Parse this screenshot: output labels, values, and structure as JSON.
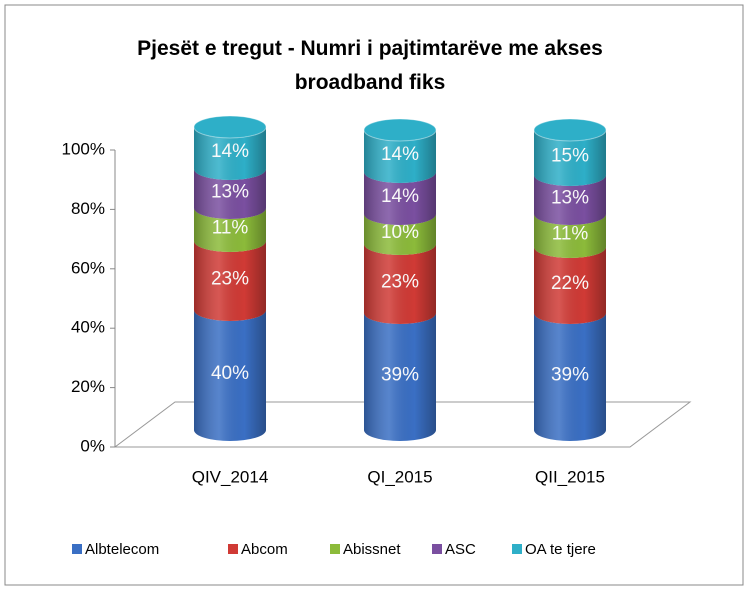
{
  "chart_data": {
    "type": "bar",
    "stacked": true,
    "title": "Pjesët e tregut - Numri i pajtimtarëve me akses broadband fiks",
    "categories": [
      "QIV_2014",
      "QI_2015",
      "QII_2015"
    ],
    "series": [
      {
        "name": "Albtelecom",
        "color": "#3a6fc4",
        "values": [
          40,
          39,
          39
        ],
        "value_labels": [
          "40%",
          "39%",
          "39%"
        ]
      },
      {
        "name": "Abcom",
        "color": "#d03a35",
        "values": [
          23,
          23,
          22
        ],
        "value_labels": [
          "23%",
          "23%",
          "22%"
        ]
      },
      {
        "name": "Abissnet",
        "color": "#8cbb3a",
        "values": [
          11,
          10,
          11
        ],
        "value_labels": [
          "11%",
          "10%",
          "11%"
        ]
      },
      {
        "name": "ASC",
        "color": "#7a4fa0",
        "values": [
          13,
          14,
          13
        ],
        "value_labels": [
          "13%",
          "14%",
          "13%"
        ]
      },
      {
        "name": "OA te tjere",
        "color": "#2eafc8",
        "values": [
          14,
          14,
          15
        ],
        "value_labels": [
          "14%",
          "14%",
          "15%"
        ]
      }
    ],
    "ylim": [
      0,
      100
    ],
    "yticks": [
      {
        "value": 0,
        "label": "0%"
      },
      {
        "value": 20,
        "label": "20%"
      },
      {
        "value": 40,
        "label": "40%"
      },
      {
        "value": 60,
        "label": "60%"
      },
      {
        "value": 80,
        "label": "80%"
      },
      {
        "value": 100,
        "label": "100%"
      }
    ],
    "legend": "bottom"
  }
}
